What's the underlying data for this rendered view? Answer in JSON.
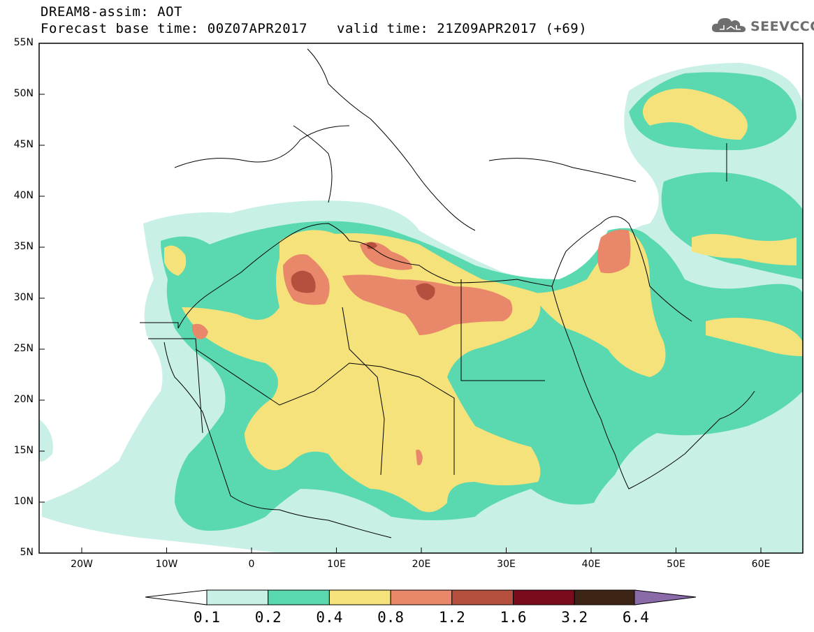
{
  "header": {
    "title": "DREAM8-assim: AOT",
    "forecast_base": "Forecast base time: 00Z07APR2017",
    "valid_time": "valid time: 21Z09APR2017 (+69)"
  },
  "logo": {
    "text": "SEEVCCC",
    "icon": "cloud-icon"
  },
  "map": {
    "lat_labels": [
      "55N",
      "50N",
      "45N",
      "40N",
      "35N",
      "30N",
      "25N",
      "20N",
      "15N",
      "10N",
      "5N"
    ],
    "lon_labels": [
      "20W",
      "10W",
      "0",
      "10E",
      "20E",
      "30E",
      "40E",
      "50E",
      "60E"
    ]
  },
  "colorbar": {
    "labels": [
      "0.1",
      "0.2",
      "0.4",
      "0.8",
      "1.2",
      "1.6",
      "3.2",
      "6.4"
    ],
    "colors": [
      "#ffffff",
      "#c8f0e6",
      "#5ad9b0",
      "#f5e27a",
      "#e8876a",
      "#b5503f",
      "#7a0a1e",
      "#3e2414",
      "#8b6aa8"
    ]
  }
}
